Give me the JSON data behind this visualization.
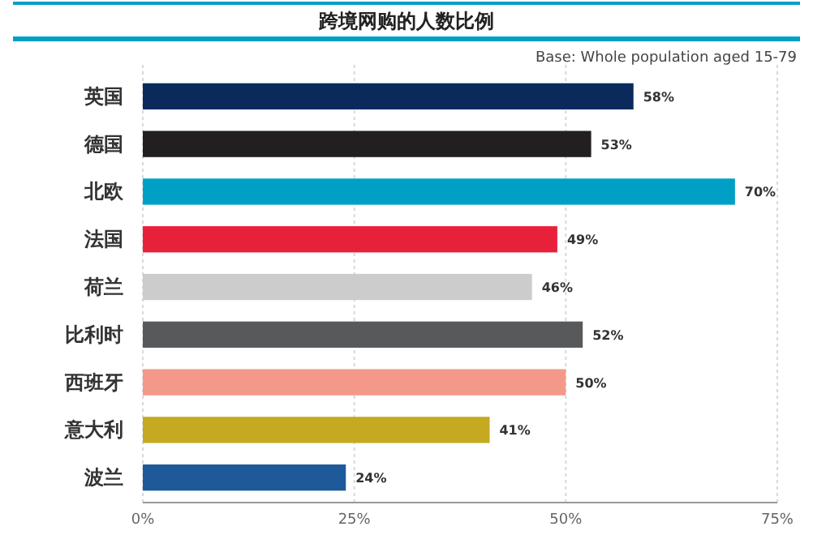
{
  "chart_data": {
    "type": "bar",
    "orientation": "horizontal",
    "title": "跨境网购的人数比例",
    "annotations": [
      "Base: Whole population aged 15-79"
    ],
    "categories": [
      "英国",
      "德国",
      "北欧",
      "法国",
      "荷兰",
      "比利时",
      "西班牙",
      "意大利",
      "波兰"
    ],
    "values": [
      58,
      53,
      70,
      49,
      46,
      52,
      50,
      41,
      24
    ],
    "colors": [
      "#0b2a5c",
      "#231f20",
      "#00a0c6",
      "#e8213a",
      "#cccccc",
      "#58595b",
      "#f4998a",
      "#c4a921",
      "#1e5a9a"
    ],
    "value_labels": [
      "58%",
      "53%",
      "70%",
      "49%",
      "46%",
      "52%",
      "50%",
      "41%",
      "24%"
    ],
    "xlim": [
      0,
      75
    ],
    "xticks": [
      {
        "value": 0,
        "label": "0%"
      },
      {
        "value": 25,
        "label": "25%"
      },
      {
        "value": 50,
        "label": "50%"
      },
      {
        "value": 75,
        "label": "75%"
      }
    ],
    "grid": "x"
  }
}
